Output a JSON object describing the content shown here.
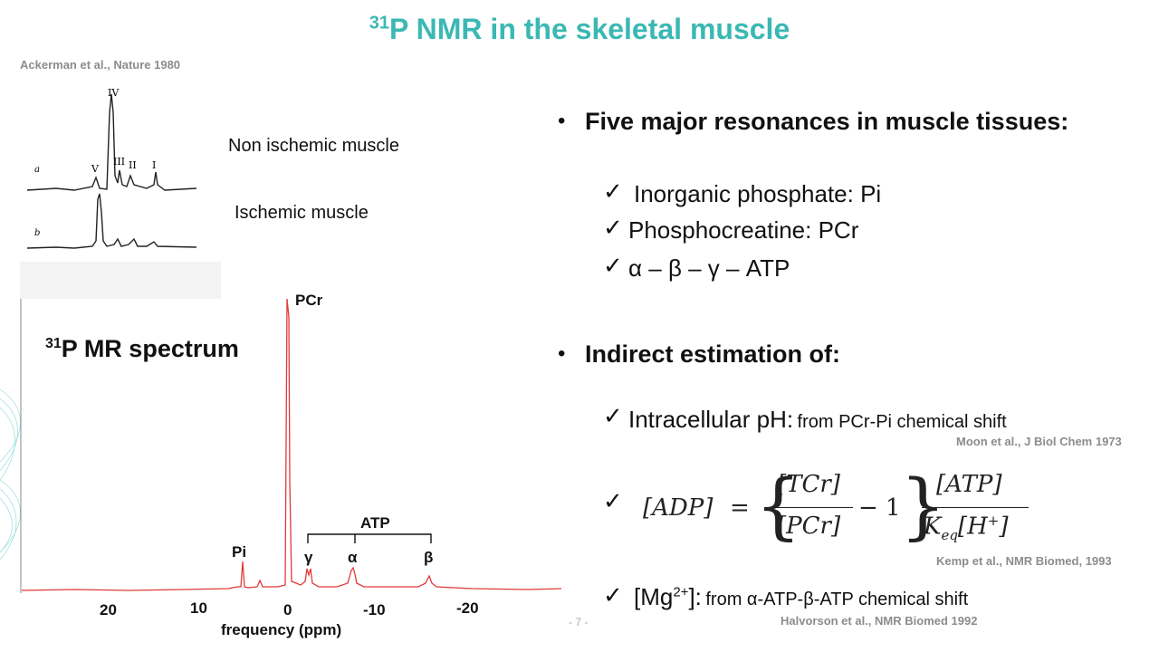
{
  "title": {
    "sup": "31",
    "text": "P NMR in the skeletal muscle"
  },
  "left": {
    "citation_top": "Ackerman et al., Nature 1980",
    "inset": {
      "peak_labels": [
        "IV",
        "V",
        "III",
        "II",
        "I"
      ],
      "trace_a": "a",
      "trace_b": "b",
      "label_non_ischemic": "Non ischemic muscle",
      "label_ischemic": "Ischemic muscle"
    },
    "spectrum": {
      "title_sup": "31",
      "title_text": "P MR spectrum",
      "peaks": {
        "pcr": "PCr",
        "pi": "Pi",
        "gamma": "γ",
        "alpha": "α",
        "beta": "β",
        "atp": "ATP"
      },
      "xlabel": "frequency (ppm)",
      "ticks": [
        "20",
        "10",
        "0",
        "-10",
        "-20"
      ],
      "line_color": "#e03a3a"
    }
  },
  "right": {
    "bullet1": {
      "heading": "Five major resonances in muscle tissues:",
      "items": [
        "Inorganic phosphate: Pi",
        "Phosphocreatine: PCr",
        "α – β – γ – ATP"
      ]
    },
    "bullet2": {
      "heading": "Indirect estimation of:",
      "ph": {
        "main": "Intracellular pH:",
        "note": "from PCr-Pi chemical shift",
        "citation": "Moon et al., J Biol Chem 1973"
      },
      "adp": {
        "lhs": "[ADP]",
        "eq": "=",
        "frac1_num": "[TCr]",
        "frac1_den": "[PCr]",
        "minus_one": "− 1",
        "frac2_num": "[ATP]",
        "frac2_den_k": "K",
        "frac2_den_sub": "eq",
        "frac2_den_h": "[H",
        "frac2_den_sup": "+",
        "frac2_den_close": "]",
        "citation": "Kemp et al., NMR Biomed, 1993"
      },
      "mg": {
        "main_open": "[Mg",
        "main_sup": "2+",
        "main_close": "]:",
        "note": "from α-ATP-β-ATP chemical shift",
        "citation": "Halvorson et al., NMR Biomed 1992"
      }
    }
  },
  "footer": {
    "slide_number": "- 7 -"
  },
  "colors": {
    "accent": "#3bb8b4",
    "citation": "#8c8c8c"
  }
}
